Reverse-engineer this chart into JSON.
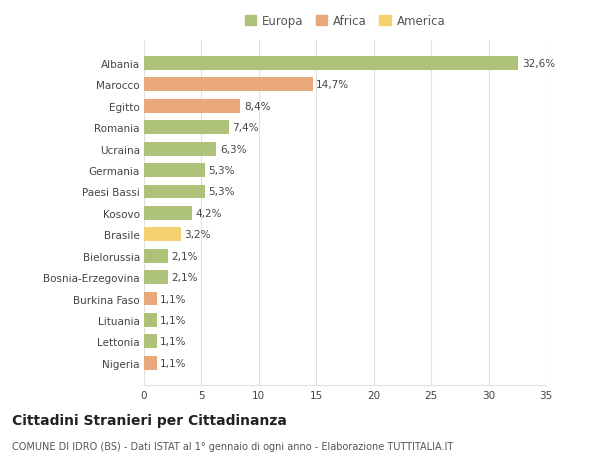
{
  "countries": [
    "Albania",
    "Marocco",
    "Egitto",
    "Romania",
    "Ucraina",
    "Germania",
    "Paesi Bassi",
    "Kosovo",
    "Brasile",
    "Bielorussia",
    "Bosnia-Erzegovina",
    "Burkina Faso",
    "Lituania",
    "Lettonia",
    "Nigeria"
  ],
  "values": [
    32.6,
    14.7,
    8.4,
    7.4,
    6.3,
    5.3,
    5.3,
    4.2,
    3.2,
    2.1,
    2.1,
    1.1,
    1.1,
    1.1,
    1.1
  ],
  "labels": [
    "32,6%",
    "14,7%",
    "8,4%",
    "7,4%",
    "6,3%",
    "5,3%",
    "5,3%",
    "4,2%",
    "3,2%",
    "2,1%",
    "2,1%",
    "1,1%",
    "1,1%",
    "1,1%",
    "1,1%"
  ],
  "colors": [
    "#adc178",
    "#e8a87c",
    "#e8a87c",
    "#adc178",
    "#adc178",
    "#adc178",
    "#adc178",
    "#adc178",
    "#f5d06e",
    "#adc178",
    "#adc178",
    "#e8a87c",
    "#adc178",
    "#adc178",
    "#e8a87c"
  ],
  "legend": [
    {
      "label": "Europa",
      "color": "#adc178"
    },
    {
      "label": "Africa",
      "color": "#e8a87c"
    },
    {
      "label": "America",
      "color": "#f5d06e"
    }
  ],
  "title": "Cittadini Stranieri per Cittadinanza",
  "subtitle": "COMUNE DI IDRO (BS) - Dati ISTAT al 1° gennaio di ogni anno - Elaborazione TUTTITALIA.IT",
  "xlim": [
    0,
    35
  ],
  "xticks": [
    0,
    5,
    10,
    15,
    20,
    25,
    30,
    35
  ],
  "background_color": "#ffffff",
  "grid_color": "#e0e0e0",
  "bar_height": 0.65,
  "label_fontsize": 7.5,
  "tick_fontsize": 7.5,
  "title_fontsize": 10,
  "subtitle_fontsize": 7
}
